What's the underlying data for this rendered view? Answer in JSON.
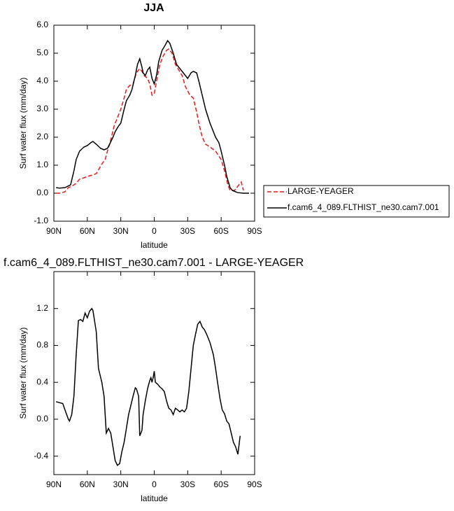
{
  "chart_data": [
    {
      "type": "line",
      "title": "JJA",
      "xlabel": "latitude",
      "ylabel": "Surf water flux (mm/day)",
      "xlim": [
        90,
        -90
      ],
      "ylim": [
        -1,
        6
      ],
      "xticks": [
        {
          "value": 90,
          "label": "90N"
        },
        {
          "value": 60,
          "label": "60N"
        },
        {
          "value": 30,
          "label": "30N"
        },
        0,
        {
          "value": -30,
          "label": "30S"
        },
        {
          "value": -60,
          "label": "60S"
        },
        {
          "value": -90,
          "label": "90S"
        }
      ],
      "yticks": [
        {
          "value": -1,
          "label": "-1.0"
        },
        {
          "value": 0,
          "label": "0.0"
        },
        {
          "value": 1,
          "label": "1.0"
        },
        {
          "value": 2,
          "label": "2.0"
        },
        {
          "value": 3,
          "label": "3.0"
        },
        {
          "value": 4,
          "label": "4.0"
        },
        {
          "value": 5,
          "label": "5.0"
        },
        {
          "value": 6,
          "label": "6.0"
        }
      ],
      "legend": "right",
      "series": [
        {
          "name": "LARGE-YEAGER",
          "color": "#e41a1c",
          "dash": true,
          "x": [
            88,
            85,
            80,
            77,
            74,
            70,
            67,
            63,
            60,
            55,
            52,
            49,
            46,
            44,
            42,
            39,
            36,
            33,
            30,
            27,
            25,
            22,
            19,
            16,
            13,
            11,
            9,
            6,
            4,
            2,
            0,
            -2,
            -5,
            -8,
            -11,
            -13,
            -16,
            -19,
            -22,
            -25,
            -28,
            -32,
            -35,
            -38,
            -40,
            -43,
            -46,
            -50,
            -55,
            -60,
            -63,
            -66,
            -68,
            -72,
            -75,
            -78,
            -80
          ],
          "values": [
            0.0,
            0.0,
            0.05,
            0.2,
            0.25,
            0.35,
            0.5,
            0.55,
            0.6,
            0.65,
            0.7,
            0.9,
            1.1,
            1.2,
            1.5,
            1.9,
            2.4,
            2.7,
            3.0,
            3.4,
            3.7,
            3.85,
            3.9,
            4.3,
            4.45,
            4.35,
            4.2,
            4.1,
            3.9,
            3.5,
            3.55,
            4.0,
            4.6,
            4.9,
            5.1,
            5.15,
            5.0,
            4.6,
            4.4,
            4.2,
            3.8,
            3.5,
            3.4,
            2.9,
            2.5,
            2.0,
            1.75,
            1.65,
            1.5,
            1.2,
            0.8,
            0.3,
            0.1,
            0.1,
            0.25,
            0.4,
            0.1
          ]
        },
        {
          "name": "f.cam6_4_089.FLTHIST_ne30.cam7.001",
          "color": "#000000",
          "dash": false,
          "x": [
            88,
            85,
            80,
            75,
            72,
            70,
            67,
            63,
            60,
            57,
            55,
            52,
            48,
            45,
            42,
            40,
            37,
            35,
            32,
            30,
            27,
            25,
            22,
            20,
            17,
            15,
            13,
            11,
            10,
            8,
            6,
            4,
            2,
            0,
            -2,
            -4,
            -7,
            -10,
            -12,
            -14,
            -17,
            -20,
            -24,
            -28,
            -30,
            -33,
            -35,
            -38,
            -40,
            -43,
            -46,
            -50,
            -55,
            -58,
            -60,
            -63,
            -65,
            -68,
            -70,
            -73,
            -75,
            -80,
            -85
          ],
          "values": [
            0.2,
            0.18,
            0.2,
            0.3,
            0.8,
            1.2,
            1.5,
            1.65,
            1.7,
            1.8,
            1.85,
            1.75,
            1.6,
            1.55,
            1.6,
            1.75,
            2.0,
            2.2,
            2.4,
            2.5,
            3.0,
            3.3,
            3.5,
            3.7,
            4.2,
            4.6,
            4.8,
            4.5,
            4.3,
            4.2,
            4.4,
            4.5,
            4.1,
            3.9,
            4.2,
            4.7,
            5.1,
            5.3,
            5.45,
            5.35,
            5.0,
            4.6,
            4.4,
            4.2,
            4.1,
            4.3,
            4.35,
            4.3,
            4.0,
            3.5,
            3.0,
            2.5,
            2.0,
            1.8,
            1.5,
            1.0,
            0.6,
            0.2,
            0.1,
            0.05,
            0.02,
            0.0,
            0.0
          ]
        }
      ]
    },
    {
      "type": "line",
      "title": "f.cam6_4_089.FLTHIST_ne30.cam7.001 - LARGE-YEAGER",
      "xlabel": "latitude",
      "ylabel": "Surf water flux (mm/day)",
      "xlim": [
        90,
        -90
      ],
      "ylim": [
        -0.6,
        1.6
      ],
      "xticks": [
        {
          "value": 90,
          "label": "90N"
        },
        {
          "value": 60,
          "label": "60N"
        },
        {
          "value": 30,
          "label": "30N"
        },
        0,
        {
          "value": -30,
          "label": "30S"
        },
        {
          "value": -60,
          "label": "60S"
        },
        {
          "value": -90,
          "label": "90S"
        }
      ],
      "yticks": [
        -0.4,
        {
          "value": 0,
          "label": "0.0"
        },
        0.4,
        0.8,
        1.2
      ],
      "color": "#000000",
      "x": [
        88,
        85,
        82,
        80,
        77,
        76,
        74,
        72,
        70,
        68,
        66,
        64,
        62,
        60,
        58,
        56,
        55,
        52,
        50,
        47,
        45,
        43,
        41,
        39,
        37,
        35,
        33,
        31,
        29,
        27,
        25,
        23,
        21,
        19,
        17,
        16,
        14,
        13,
        11,
        10,
        8,
        6,
        4,
        3,
        2,
        1,
        0,
        -1,
        -3,
        -5,
        -7,
        -9,
        -11,
        -13,
        -15,
        -17,
        -19,
        -21,
        -23,
        -25,
        -27,
        -29,
        -31,
        -33,
        -35,
        -37,
        -39,
        -41,
        -43,
        -45,
        -47,
        -50,
        -53,
        -55,
        -57,
        -59,
        -61,
        -63,
        -65,
        -67,
        -69,
        -71,
        -73,
        -75,
        -77
      ],
      "values": [
        0.19,
        0.18,
        0.17,
        0.1,
        0.0,
        -0.02,
        0.05,
        0.25,
        0.7,
        1.07,
        1.08,
        1.06,
        1.15,
        1.1,
        1.17,
        1.2,
        1.18,
        0.95,
        0.55,
        0.4,
        0.25,
        -0.15,
        -0.1,
        -0.15,
        -0.3,
        -0.45,
        -0.5,
        -0.48,
        -0.35,
        -0.25,
        -0.1,
        0.05,
        0.15,
        0.25,
        0.34,
        0.33,
        0.25,
        -0.18,
        -0.12,
        0.05,
        0.2,
        0.33,
        0.42,
        0.45,
        0.4,
        0.45,
        0.52,
        0.4,
        0.38,
        0.35,
        0.33,
        0.3,
        0.2,
        0.12,
        0.1,
        0.05,
        0.12,
        0.1,
        0.08,
        0.1,
        0.08,
        0.12,
        0.3,
        0.55,
        0.8,
        0.92,
        1.03,
        1.06,
        1.0,
        0.97,
        0.92,
        0.83,
        0.7,
        0.55,
        0.38,
        0.22,
        0.1,
        0.06,
        -0.02,
        -0.05,
        -0.15,
        -0.25,
        -0.3,
        -0.38,
        -0.18
      ]
    }
  ]
}
